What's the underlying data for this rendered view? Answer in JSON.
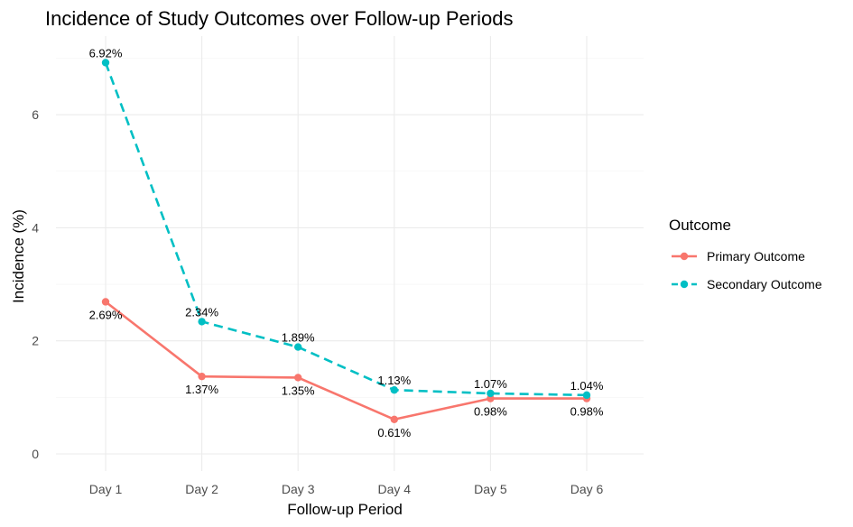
{
  "chart_data": {
    "type": "line",
    "title": "Incidence of Study Outcomes over Follow-up Periods",
    "xlabel": "Follow-up Period",
    "ylabel": "Incidence (%)",
    "categories": [
      "Day 1",
      "Day 2",
      "Day 3",
      "Day 4",
      "Day 5",
      "Day 6"
    ],
    "ylim": [
      -0.25,
      7.3
    ],
    "yticks": [
      0,
      2,
      4,
      6
    ],
    "grid": true,
    "legend": {
      "title": "Outcome",
      "position": "right"
    },
    "series": [
      {
        "name": "Primary Outcome",
        "color": "#F8766D",
        "line_style": "solid",
        "values": [
          2.69,
          1.37,
          1.35,
          0.61,
          0.98,
          0.98
        ],
        "labels": [
          "2.69%",
          "1.37%",
          "1.35%",
          "0.61%",
          "0.98%",
          "0.98%"
        ],
        "label_position": "below"
      },
      {
        "name": "Secondary Outcome",
        "color": "#00BFC4",
        "line_style": "dashed",
        "values": [
          6.92,
          2.34,
          1.89,
          1.13,
          1.07,
          1.04
        ],
        "labels": [
          "6.92%",
          "2.34%",
          "1.89%",
          "1.13%",
          "1.07%",
          "1.04%"
        ],
        "label_position": "above"
      }
    ]
  }
}
